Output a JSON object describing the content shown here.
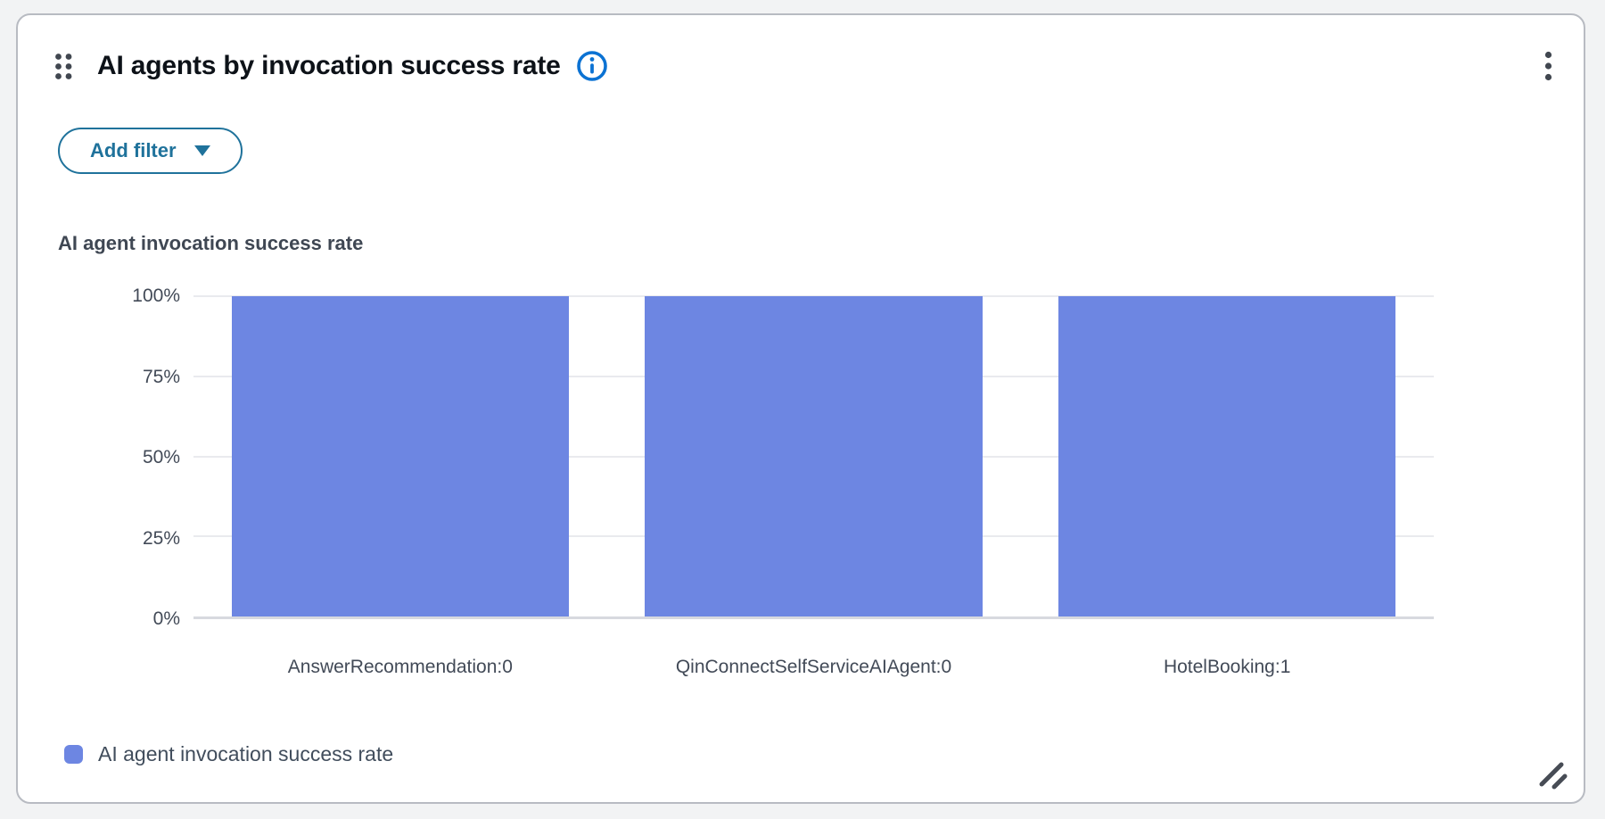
{
  "colors": {
    "page_bg": "#f2f3f4",
    "card_bg": "#ffffff",
    "card_border": "#b8bbc2",
    "title_text": "#0d1218",
    "icon_gray": "#414750",
    "info_blue": "#0b72d3",
    "button_teal": "#1f729b",
    "subtitle_text": "#3f4753",
    "axis_text": "#424a57",
    "gridline": "#e9eaee",
    "baseline": "#d7d9df",
    "bar_fill": "#6d86e2",
    "legend_text": "#414d5c"
  },
  "widget": {
    "title": "AI agents by invocation success rate",
    "filter_button_label": "Add filter",
    "chart_heading": "AI agent invocation success rate",
    "legend_label": "AI agent invocation success rate"
  },
  "chart_data": {
    "type": "bar",
    "title": "AI agent invocation success rate",
    "categories": [
      "AnswerRecommendation:0",
      "QinConnectSelfServiceAIAgent:0",
      "HotelBooking:1"
    ],
    "values": [
      100,
      100,
      100
    ],
    "unit": "%",
    "xlabel": "",
    "ylabel": "",
    "ylim": [
      0,
      100
    ],
    "yticks": [
      "100%",
      "75%",
      "50%",
      "25%",
      "0%"
    ],
    "grid": true,
    "legend": [
      "AI agent invocation success rate"
    ],
    "legend_position": "bottom-left",
    "bar_color": "#6d86e2"
  }
}
